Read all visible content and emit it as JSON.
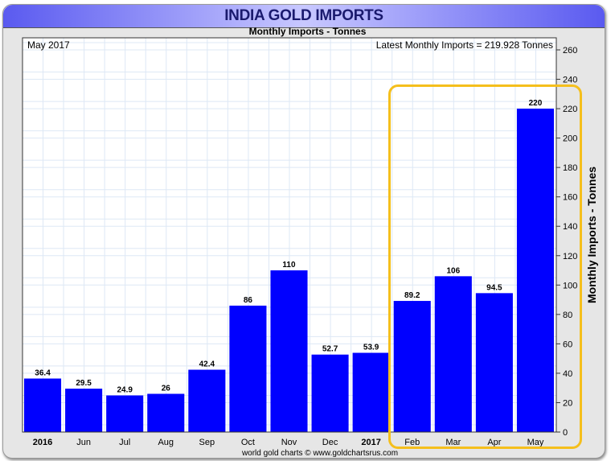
{
  "chart_data": {
    "type": "bar",
    "title": "INDIA GOLD IMPORTS",
    "subtitle": "Monthly Imports - Tonnes",
    "top_left_label": "May 2017",
    "top_right_label": "Latest Monthly Imports = 219.928 Tonnes",
    "ylabel": "Monthly Imports - Tonnes",
    "credit": "world gold charts © www.goldchartsrus.com",
    "categories": [
      "2016",
      "Jun",
      "Jul",
      "Aug",
      "Sep",
      "Oct",
      "Nov",
      "Dec",
      "2017",
      "Feb",
      "Mar",
      "Apr",
      "May"
    ],
    "bold_categories": [
      "2016",
      "2017"
    ],
    "values": [
      36.4,
      29.5,
      24.9,
      26,
      42.4,
      86,
      110,
      52.7,
      53.9,
      89.2,
      106,
      94.5,
      220
    ],
    "value_labels": [
      "36.4",
      "29.5",
      "24.9",
      "26",
      "42.4",
      "86",
      "110",
      "52.7",
      "53.9",
      "89.2",
      "106",
      "94.5",
      "220"
    ],
    "ylim": [
      0,
      260
    ],
    "yticks": [
      0,
      20,
      40,
      60,
      80,
      100,
      120,
      140,
      160,
      180,
      200,
      220,
      240,
      260
    ],
    "grid": true,
    "bar_color": "#0000ff",
    "highlight_color": "#f5bf1c",
    "highlighted_categories": [
      "Feb",
      "Mar",
      "Apr",
      "May"
    ]
  }
}
